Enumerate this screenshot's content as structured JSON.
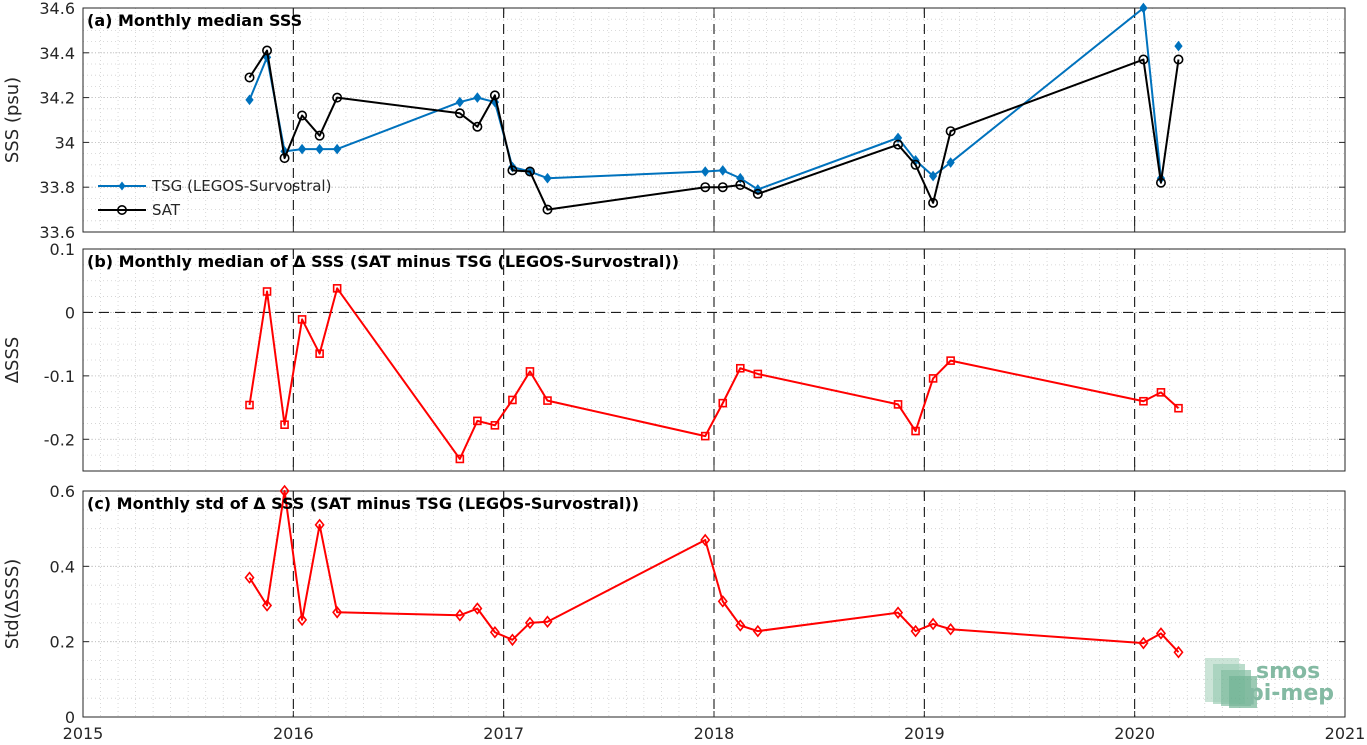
{
  "chart_data": [
    {
      "type": "line",
      "title": "(a) Monthly median SSS",
      "ylabel": "SSS (psu)",
      "xlim": [
        2015,
        2021
      ],
      "ylim": [
        33.6,
        34.6
      ],
      "yticks": [
        "33.6",
        "33.8",
        "34",
        "34.2",
        "34.4",
        "34.6"
      ],
      "grid": true,
      "legend_position": "center-left",
      "series": [
        {
          "name": "TSG (LEGOS-Survostral)",
          "color": "#0072BD",
          "marker": "diamond-filled",
          "segments": [
            {
              "x": [
                "2015-10",
                "2015-11",
                "2015-12",
                "2016-01",
                "2016-02",
                "2016-03",
                "2016-10",
                "2016-11",
                "2016-12",
                "2017-01",
                "2017-02",
                "2017-03",
                "2017-12",
                "2018-01",
                "2018-02",
                "2018-03",
                "2018-11",
                "2018-12",
                "2019-01",
                "2019-02",
                "2020-01",
                "2020-02"
              ],
              "y": [
                34.19,
                34.38,
                33.96,
                33.97,
                33.97,
                33.97,
                34.18,
                34.2,
                34.18,
                33.89,
                33.87,
                33.84,
                33.87,
                33.875,
                33.84,
                33.79,
                34.02,
                33.92,
                33.85,
                33.91,
                34.6,
                33.84
              ]
            },
            {
              "x": [
                "2020-03"
              ],
              "y": [
                34.43
              ]
            }
          ]
        },
        {
          "name": "SAT",
          "color": "#000000",
          "marker": "circle-open",
          "segments": [
            {
              "x": [
                "2015-10",
                "2015-11",
                "2015-12",
                "2016-01",
                "2016-02",
                "2016-03",
                "2016-10",
                "2016-11",
                "2016-12",
                "2017-01",
                "2017-02",
                "2017-03",
                "2017-12",
                "2018-01",
                "2018-02",
                "2018-03",
                "2018-11",
                "2018-12",
                "2019-01",
                "2019-02",
                "2020-01",
                "2020-02",
                "2020-03"
              ],
              "y": [
                34.29,
                34.41,
                33.93,
                34.12,
                34.03,
                34.2,
                34.13,
                34.07,
                34.21,
                33.875,
                33.87,
                33.7,
                33.8,
                33.8,
                33.81,
                33.77,
                33.99,
                33.9,
                33.73,
                34.05,
                34.37,
                33.82,
                34.37
              ]
            }
          ]
        }
      ]
    },
    {
      "type": "line",
      "title": "(b) Monthly median of Δ SSS (SAT minus TSG (LEGOS-Survostral))",
      "ylabel": "ΔSSS",
      "xlim": [
        2015,
        2021
      ],
      "ylim": [
        -0.25,
        0.1
      ],
      "yticks": [
        "-0.2",
        "-0.1",
        "0",
        "0.1"
      ],
      "grid": true,
      "zero_line": "dashed",
      "series": [
        {
          "color": "#FF0000",
          "marker": "square-open",
          "segments": [
            {
              "x": [
                "2015-10",
                "2015-11",
                "2015-12",
                "2016-01",
                "2016-02",
                "2016-03",
                "2016-10",
                "2016-11",
                "2016-12",
                "2017-01",
                "2017-02",
                "2017-03",
                "2017-12",
                "2018-01",
                "2018-02",
                "2018-03",
                "2018-11",
                "2018-12",
                "2019-01",
                "2019-02",
                "2020-01",
                "2020-02",
                "2020-03"
              ],
              "y": [
                -0.146,
                0.033,
                -0.177,
                -0.011,
                -0.065,
                0.038,
                -0.231,
                -0.171,
                -0.178,
                -0.138,
                -0.093,
                -0.139,
                -0.195,
                -0.143,
                -0.088,
                -0.097,
                -0.145,
                -0.187,
                -0.104,
                -0.076,
                -0.14,
                -0.126,
                -0.151
              ]
            }
          ]
        }
      ]
    },
    {
      "type": "line",
      "title": "(c) Monthly std of Δ SSS (SAT minus TSG (LEGOS-Survostral))",
      "ylabel": "Std(ΔSSS)",
      "xlim": [
        2015,
        2021
      ],
      "ylim": [
        0,
        0.6
      ],
      "yticks": [
        "0",
        "0.2",
        "0.4",
        "0.6"
      ],
      "xticks": [
        "2015",
        "2016",
        "2017",
        "2018",
        "2019",
        "2020",
        "2021"
      ],
      "grid": true,
      "series": [
        {
          "color": "#FF0000",
          "marker": "diamond-open",
          "segments": [
            {
              "x": [
                "2015-10",
                "2015-11",
                "2015-12",
                "2016-01",
                "2016-02",
                "2016-03",
                "2016-10",
                "2016-11",
                "2016-12",
                "2017-01",
                "2017-02",
                "2017-03",
                "2017-12",
                "2018-01",
                "2018-02",
                "2018-03",
                "2018-11",
                "2018-12",
                "2019-01",
                "2019-02",
                "2020-01",
                "2020-02",
                "2020-03"
              ],
              "y": [
                0.37,
                0.296,
                0.6,
                0.258,
                0.51,
                0.278,
                0.27,
                0.288,
                0.225,
                0.205,
                0.25,
                0.253,
                0.47,
                0.307,
                0.243,
                0.228,
                0.277,
                0.228,
                0.247,
                0.233,
                0.196,
                0.222,
                0.172
              ]
            }
          ]
        }
      ]
    }
  ],
  "logo": {
    "line1": "smos",
    "line2": "pi-mep"
  }
}
